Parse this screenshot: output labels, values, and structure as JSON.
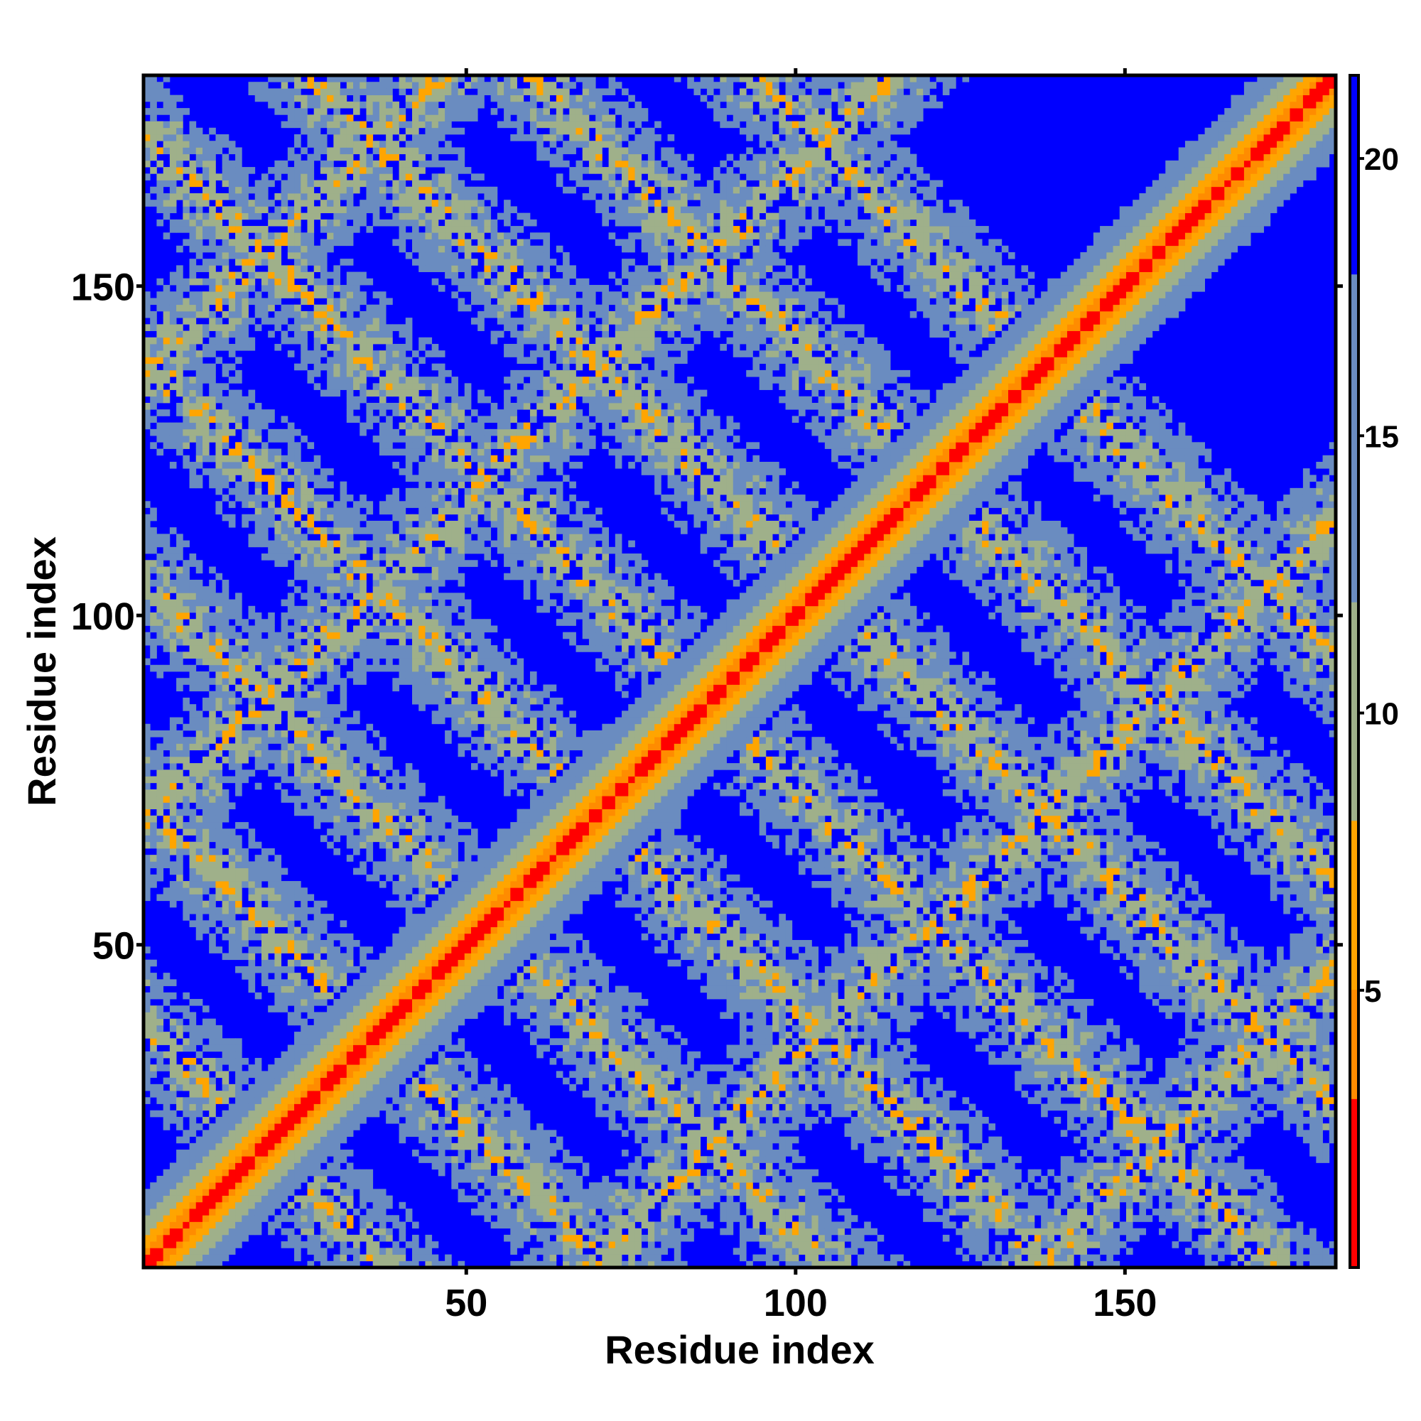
{
  "chart_data": {
    "type": "heatmap",
    "title": "",
    "xlabel": "Residue index",
    "ylabel": "Residue index",
    "xlim": [
      1,
      182
    ],
    "ylim": [
      1,
      182
    ],
    "x_ticks": [
      50,
      100,
      150
    ],
    "y_ticks": [
      50,
      100,
      150
    ],
    "colorbar": {
      "range": [
        0,
        21.5
      ],
      "ticks": [
        5,
        10,
        15,
        20
      ],
      "colors": {
        "near": "#ff0000",
        "mid": "#ff8c00",
        "orange": "#ffa500",
        "sage": "#9fb08a",
        "steel": "#6a8cc0",
        "far": "#0000ff"
      }
    },
    "value_description": "pairwise residue distance; symmetric map with strong diagonal band and periodic off-diagonal contact bands",
    "diagonal_bandwidth": 12,
    "contact_bands": [
      {
        "x_center": [
          37,
          2
        ],
        "y_center": [
          2,
          37
        ],
        "name": "anti-diag-1"
      },
      {
        "x_center": [
          70,
          2
        ],
        "y_center": [
          2,
          70
        ],
        "name": "anti-diag-2"
      },
      {
        "x_center": [
          104,
          2
        ],
        "y_center": [
          2,
          104
        ],
        "name": "anti-diag-3"
      },
      {
        "x_center": [
          137,
          37
        ],
        "y_center": [
          37,
          137
        ],
        "name": "anti-diag-4"
      },
      {
        "x_center": [
          181,
          70
        ],
        "y_center": [
          70,
          181
        ],
        "name": "anti-diag-5"
      }
    ]
  }
}
